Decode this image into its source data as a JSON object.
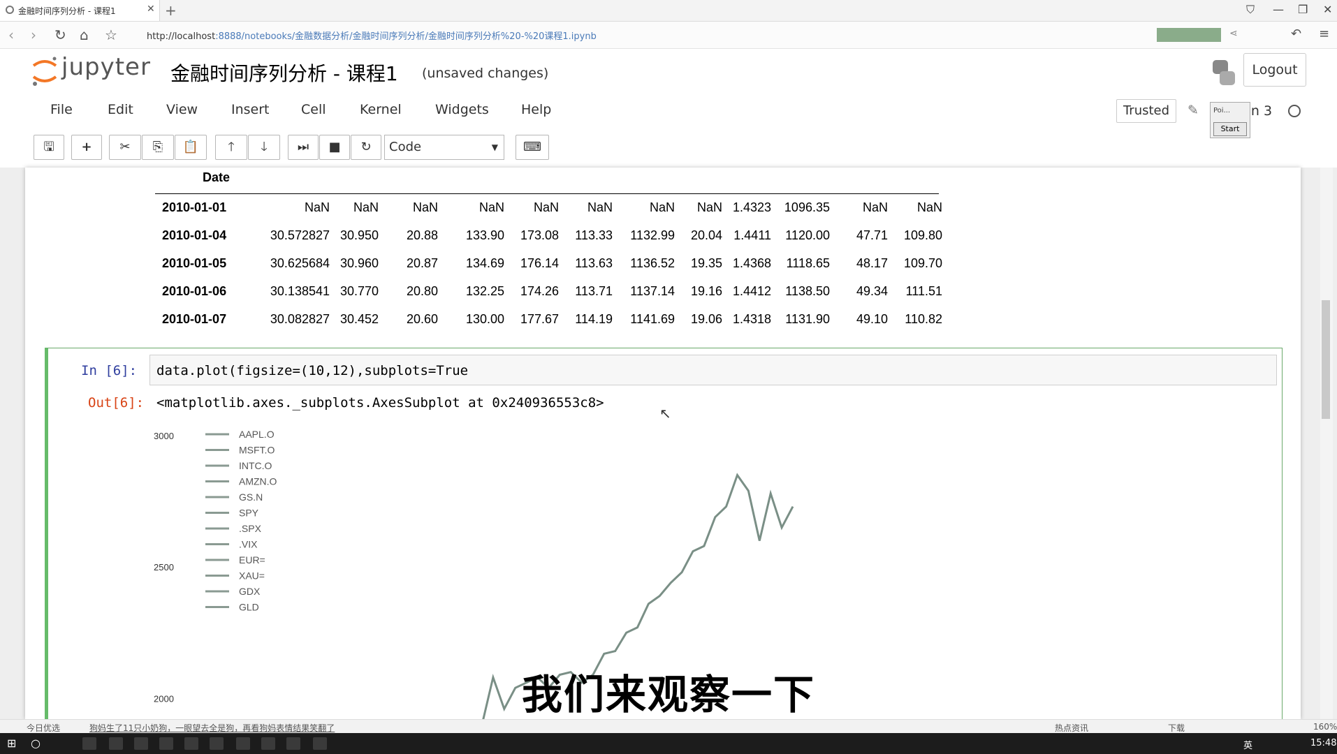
{
  "browser": {
    "tab_title": "金融时间序列分析 - 课程1",
    "url_host": "http://localhost",
    "url_rest": ":8888/notebooks/金融数据分析/金融时间序列分析/金融时间序列分析%20-%20课程1.ipynb"
  },
  "header": {
    "logo_text": "jupyter",
    "notebook_name": "金融时间序列分析 - 课程1",
    "save_status": "(unsaved changes)",
    "logout_label": "Logout",
    "trusted_label": "Trusted",
    "kernel_label": "ion 3",
    "popup_text": "Poi...",
    "popup_button": "Start"
  },
  "menu": [
    "File",
    "Edit",
    "View",
    "Insert",
    "Cell",
    "Kernel",
    "Widgets",
    "Help"
  ],
  "toolbar": {
    "cell_type": "Code"
  },
  "dataframe": {
    "index_name": "Date",
    "rows": [
      {
        "date": "2010-01-01",
        "values": [
          "NaN",
          "NaN",
          "NaN",
          "NaN",
          "NaN",
          "NaN",
          "NaN",
          "NaN",
          "1.4323",
          "1096.35",
          "NaN",
          "NaN"
        ]
      },
      {
        "date": "2010-01-04",
        "values": [
          "30.572827",
          "30.950",
          "20.88",
          "133.90",
          "173.08",
          "113.33",
          "1132.99",
          "20.04",
          "1.4411",
          "1120.00",
          "47.71",
          "109.80"
        ]
      },
      {
        "date": "2010-01-05",
        "values": [
          "30.625684",
          "30.960",
          "20.87",
          "134.69",
          "176.14",
          "113.63",
          "1136.52",
          "19.35",
          "1.4368",
          "1118.65",
          "48.17",
          "109.70"
        ]
      },
      {
        "date": "2010-01-06",
        "values": [
          "30.138541",
          "30.770",
          "20.80",
          "132.25",
          "174.26",
          "113.71",
          "1137.14",
          "19.16",
          "1.4412",
          "1138.50",
          "49.34",
          "111.51"
        ]
      },
      {
        "date": "2010-01-07",
        "values": [
          "30.082827",
          "30.452",
          "20.60",
          "130.00",
          "177.67",
          "114.19",
          "1141.69",
          "19.06",
          "1.4318",
          "1131.90",
          "49.10",
          "110.82"
        ]
      }
    ]
  },
  "cell": {
    "in_prompt": "In  [6]:",
    "code": "data.plot(figsize=(10,12),subplots=True",
    "out_prompt": "Out[6]:",
    "output_text": "<matplotlib.axes._subplots.AxesSubplot at 0x240936553c8>"
  },
  "chart_data": {
    "type": "line",
    "yticks": [
      "3000",
      "2500",
      "2000"
    ],
    "ylim_visible": [
      1900,
      3000
    ],
    "legend": [
      "AAPL.O",
      "MSFT.O",
      "INTC.O",
      "AMZN.O",
      "GS.N",
      "SPY",
      ".SPX",
      ".VIX",
      "EUR=",
      "XAU=",
      "GDX",
      "GLD"
    ],
    "legend_placement": "top-left",
    "series": [
      {
        "name": ".SPX",
        "values": [
          1900,
          2080,
          1960,
          2040,
          2060,
          2080,
          2040,
          2090,
          2100,
          2060,
          2090,
          2170,
          2180,
          2250,
          2270,
          2360,
          2390,
          2440,
          2480,
          2560,
          2580,
          2690,
          2730,
          2850,
          2790,
          2600,
          2780,
          2650,
          2730
        ]
      }
    ]
  },
  "subtitle": "我们来观察一下",
  "statusbar": {
    "left_text": "今日优选",
    "news": "狗妈生了11只小奶狗，一眼望去全是狗，再看狗妈表情结果笑翻了",
    "hot": "热点资讯",
    "download": "下载",
    "zoom": "160%"
  },
  "taskbar": {
    "clock": "15:48",
    "lang": "英"
  },
  "colors": {
    "accent_green": "#66bb6a",
    "in_prompt": "#303f9f",
    "out_prompt": "#d84315",
    "line": "#7a8f86"
  }
}
